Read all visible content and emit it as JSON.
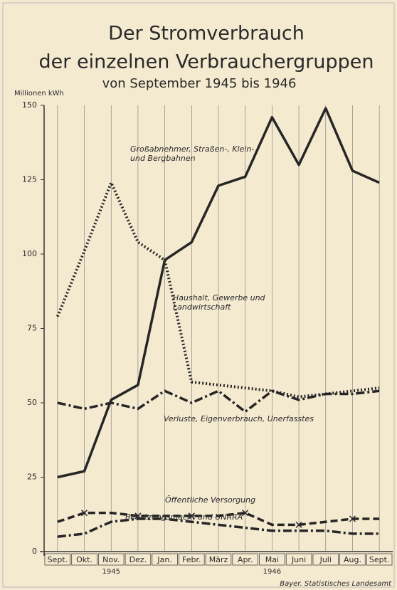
{
  "chart_data": {
    "type": "line",
    "title": [
      "Der Stromverbrauch",
      "der einzelnen Verbrauchergruppen"
    ],
    "subtitle": "von September 1945 bis 1946",
    "y_label": "Millionen kWh",
    "source": "Bayer. Statistisches Landesamt",
    "categories": [
      "Sept.",
      "Okt.",
      "Nov.",
      "Dez.",
      "Jan.",
      "Febr.",
      "März",
      "Apr.",
      "Mai",
      "Juni",
      "Juli",
      "Aug.",
      "Sept."
    ],
    "category_years": [
      null,
      null,
      "1945",
      null,
      null,
      null,
      null,
      null,
      "1946",
      null,
      null,
      null,
      null
    ],
    "ylim": [
      0,
      150
    ],
    "yticks": [
      0,
      25,
      50,
      75,
      100,
      125,
      150
    ],
    "grid": false,
    "series": [
      {
        "name": "Großabnehmer, Straßen-, Klein- und Bergbahnen",
        "color": "#262626",
        "dash": "solid",
        "values": [
          25,
          27,
          51,
          56,
          98,
          104,
          123,
          126,
          146,
          130,
          149,
          128,
          124
        ]
      },
      {
        "name": "Haushalt, Gewerbe und Landwirtschaft",
        "color": "#262626",
        "dash": "dotted",
        "values": [
          79,
          101,
          124,
          104,
          98,
          57,
          56,
          55,
          54,
          52,
          53,
          54,
          55
        ]
      },
      {
        "name": "Verluste, Eigenverbrauch, Unerfasstes",
        "color": "#262626",
        "dash": "dashdot",
        "values": [
          50,
          48,
          50,
          48,
          54,
          50,
          54,
          47,
          54,
          51,
          53,
          53,
          54
        ]
      },
      {
        "name": "Öffentliche Versorgung",
        "color": "#262626",
        "dash": "dashed",
        "marker": "x",
        "values": [
          10,
          13,
          13,
          12,
          12,
          12,
          12,
          13,
          9,
          9,
          10,
          11,
          11
        ]
      },
      {
        "name": "Besatzungsmacht und UNRRA",
        "color": "#262626",
        "dash": "dashdot",
        "values": [
          5,
          6,
          10,
          11,
          11,
          10,
          9,
          8,
          7,
          7,
          7,
          6,
          6
        ]
      }
    ]
  }
}
